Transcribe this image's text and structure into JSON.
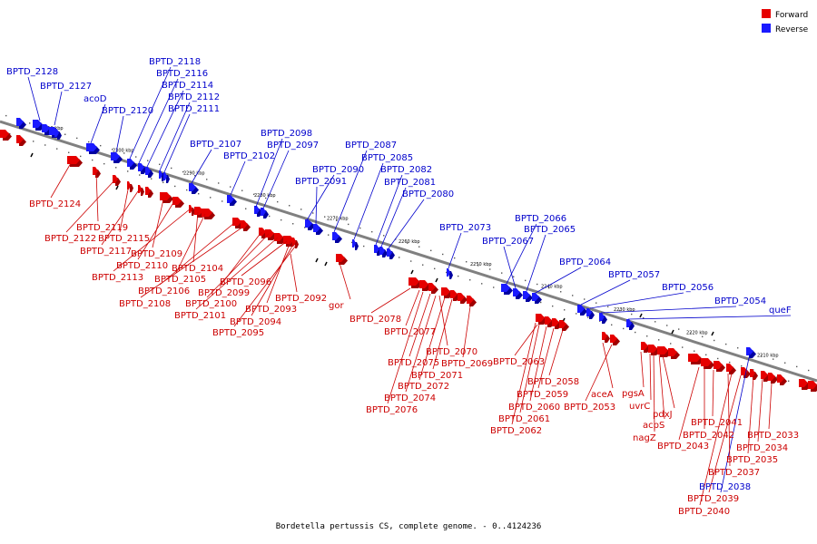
{
  "legend": {
    "forward": "Forward",
    "reverse": "Reverse"
  },
  "colors": {
    "forward": "#e60000",
    "forward_dark": "#a00000",
    "reverse": "#1a1aff",
    "reverse_dark": "#0000a0",
    "axis": "#808080"
  },
  "caption": "Bordetella pertussis CS, complete genome. - 0..4124236",
  "ticks": [
    "2310 kbp",
    "2300 kbp",
    "2290 kbp",
    "2280 kbp",
    "2270 kbp",
    "2260 kbp",
    "2250 kbp",
    "2240 kbp",
    "2230 kbp",
    "2220 kbp",
    "2210 kbp"
  ],
  "reverse_genes": [
    "BPTD_2128",
    "BPTD_2127",
    "acoD",
    "BPTD_2120",
    "BPTD_2118",
    "BPTD_2116",
    "BPTD_2114",
    "BPTD_2112",
    "BPTD_2111",
    "BPTD_2107",
    "BPTD_2102",
    "BPTD_2098",
    "BPTD_2097",
    "BPTD_2091",
    "BPTD_2090",
    "BPTD_2087",
    "BPTD_2085",
    "BPTD_2082",
    "BPTD_2081",
    "BPTD_2080",
    "BPTD_2073",
    "BPTD_2067",
    "BPTD_2066",
    "BPTD_2065",
    "BPTD_2064",
    "BPTD_2057",
    "BPTD_2056",
    "BPTD_2054",
    "queF",
    "BPTD_2038"
  ],
  "forward_genes": [
    "BPTD_2124",
    "BPTD_2119",
    "BPTD_2122",
    "BPTD_2115",
    "BPTD_2117",
    "BPTD_2109",
    "BPTD_2110",
    "BPTD_2113",
    "BPTD_2104",
    "BPTD_2105",
    "BPTD_2106",
    "BPTD_2108",
    "BPTD_2099",
    "BPTD_2100",
    "BPTD_2101",
    "BPTD_2096",
    "BPTD_2093",
    "BPTD_2094",
    "BPTD_2095",
    "BPTD_2092",
    "gor",
    "BPTD_2078",
    "BPTD_2077",
    "BPTD_2070",
    "BPTD_2075",
    "BPTD_2069",
    "BPTD_2071",
    "BPTD_2072",
    "BPTD_2074",
    "BPTD_2076",
    "BPTD_2063",
    "BPTD_2058",
    "BPTD_2059",
    "BPTD_2060",
    "BPTD_2061",
    "BPTD_2062",
    "aceA",
    "BPTD_2053",
    "pgsA",
    "uvrC",
    "pdxJ",
    "acpS",
    "nagZ",
    "BPTD_2043",
    "BPTD_2041",
    "BPTD_2042",
    "BPTD_2033",
    "BPTD_2034",
    "BPTD_2035",
    "BPTD_2037",
    "BPTD_2039",
    "BPTD_2040"
  ]
}
